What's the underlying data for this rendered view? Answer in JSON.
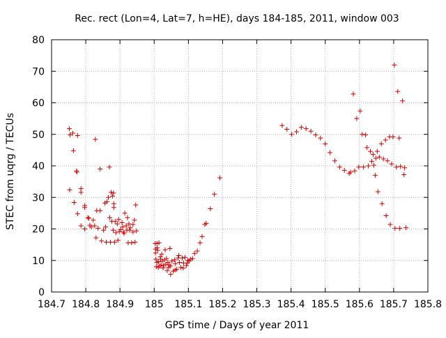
{
  "chart_data": {
    "type": "scatter",
    "title": "Rec. rect (Lon=4, Lat=7, h=HE), days 184-185, 2011, window 003",
    "xlabel": "GPS time / Days of year 2011",
    "ylabel": "STEC from uqrg / TECUs",
    "xlim": [
      184.7,
      185.8
    ],
    "ylim": [
      0,
      80
    ],
    "x_ticks": [
      "184.7",
      "184.8",
      "184.9",
      "185",
      "185.1",
      "185.2",
      "185.3",
      "185.4",
      "185.5",
      "185.6",
      "185.7",
      "185.8"
    ],
    "y_ticks": [
      "0",
      "10",
      "20",
      "30",
      "40",
      "50",
      "60",
      "70",
      "80"
    ],
    "grid": true,
    "marker": "+",
    "color": "#cc0000",
    "series": [
      {
        "points": [
          [
            184.752,
            51.8
          ],
          [
            184.754,
            49.8
          ],
          [
            184.753,
            32.4
          ],
          [
            184.762,
            50.4
          ],
          [
            184.764,
            44.8
          ],
          [
            184.766,
            28.4
          ],
          [
            184.773,
            38.4
          ],
          [
            184.774,
            38.0
          ],
          [
            184.776,
            49.6
          ],
          [
            184.776,
            24.8
          ],
          [
            184.786,
            32.8
          ],
          [
            184.786,
            31.6
          ],
          [
            184.786,
            21.0
          ],
          [
            184.797,
            27.4
          ],
          [
            184.797,
            26.8
          ],
          [
            184.797,
            20.0
          ],
          [
            184.806,
            23.6
          ],
          [
            184.809,
            23.4
          ],
          [
            184.812,
            21.2
          ],
          [
            184.816,
            20.6
          ],
          [
            184.822,
            22.8
          ],
          [
            184.826,
            21.0
          ],
          [
            184.828,
            48.4
          ],
          [
            184.83,
            17.2
          ],
          [
            184.832,
            25.8
          ],
          [
            184.836,
            20.2
          ],
          [
            184.842,
            25.8
          ],
          [
            184.842,
            39.0
          ],
          [
            184.846,
            16.2
          ],
          [
            184.852,
            19.6
          ],
          [
            184.856,
            28.2
          ],
          [
            184.858,
            20.6
          ],
          [
            184.86,
            15.8
          ],
          [
            184.862,
            28.6
          ],
          [
            184.866,
            30.0
          ],
          [
            184.869,
            39.6
          ],
          [
            184.87,
            23.6
          ],
          [
            184.872,
            15.8
          ],
          [
            184.874,
            31.6
          ],
          [
            184.876,
            22.4
          ],
          [
            184.878,
            30.4
          ],
          [
            184.88,
            19.6
          ],
          [
            184.881,
            31.4
          ],
          [
            184.882,
            28.0
          ],
          [
            184.882,
            26.8
          ],
          [
            184.884,
            15.8
          ],
          [
            184.886,
            22.4
          ],
          [
            184.888,
            18.8
          ],
          [
            184.892,
            21.6
          ],
          [
            184.894,
            16.4
          ],
          [
            184.896,
            23.0
          ],
          [
            184.898,
            19.2
          ],
          [
            184.902,
            19.8
          ],
          [
            184.906,
            22.0
          ],
          [
            184.908,
            20.6
          ],
          [
            184.91,
            19.0
          ],
          [
            184.912,
            18.6
          ],
          [
            184.914,
            25.0
          ],
          [
            184.918,
            21.0
          ],
          [
            184.92,
            19.6
          ],
          [
            184.922,
            23.6
          ],
          [
            184.924,
            15.6
          ],
          [
            184.926,
            21.6
          ],
          [
            184.928,
            19.6
          ],
          [
            184.93,
            20.4
          ],
          [
            184.934,
            15.6
          ],
          [
            184.938,
            21.4
          ],
          [
            184.938,
            19.0
          ],
          [
            184.942,
            22.8
          ],
          [
            184.944,
            15.8
          ],
          [
            184.946,
            27.6
          ],
          [
            184.948,
            19.4
          ],
          [
            185.003,
            15.4
          ],
          [
            185.004,
            13.6
          ],
          [
            185.004,
            12.4
          ],
          [
            185.005,
            10.4
          ],
          [
            185.006,
            8.0
          ],
          [
            185.008,
            15.4
          ],
          [
            185.009,
            14.0
          ],
          [
            185.01,
            13.2
          ],
          [
            185.012,
            7.8
          ],
          [
            185.013,
            9.6
          ],
          [
            185.014,
            15.6
          ],
          [
            185.016,
            8.2
          ],
          [
            185.018,
            11.2
          ],
          [
            185.019,
            10.4
          ],
          [
            185.02,
            8.6
          ],
          [
            185.022,
            12.0
          ],
          [
            185.024,
            9.8
          ],
          [
            185.026,
            7.6
          ],
          [
            185.028,
            8.4
          ],
          [
            185.03,
            10.2
          ],
          [
            185.032,
            13.4
          ],
          [
            185.034,
            8.8
          ],
          [
            185.036,
            10.6
          ],
          [
            185.038,
            6.8
          ],
          [
            185.04,
            9.4
          ],
          [
            185.042,
            7.8
          ],
          [
            185.044,
            8.6
          ],
          [
            185.046,
            13.8
          ],
          [
            185.048,
            5.6
          ],
          [
            185.052,
            9.8
          ],
          [
            185.056,
            6.6
          ],
          [
            185.06,
            10.2
          ],
          [
            185.062,
            9.0
          ],
          [
            185.066,
            7.2
          ],
          [
            185.07,
            10.8
          ],
          [
            185.072,
            11.6
          ],
          [
            185.074,
            9.4
          ],
          [
            185.078,
            7.8
          ],
          [
            185.082,
            10.8
          ],
          [
            185.086,
            9.2
          ],
          [
            185.09,
            11.0
          ],
          [
            185.094,
            8.4
          ],
          [
            185.098,
            10.0
          ],
          [
            185.102,
            9.8
          ],
          [
            185.106,
            10.4
          ],
          [
            185.112,
            10.6
          ],
          [
            185.118,
            12.2
          ],
          [
            185.126,
            13.0
          ],
          [
            185.134,
            15.6
          ],
          [
            185.14,
            17.6
          ],
          [
            185.148,
            21.4
          ],
          [
            185.152,
            21.8
          ],
          [
            185.164,
            26.4
          ],
          [
            185.176,
            31.0
          ],
          [
            185.192,
            36.2
          ],
          [
            185.008,
            9.4
          ],
          [
            185.048,
            8.2
          ],
          [
            185.061,
            7.0
          ],
          [
            185.085,
            7.6
          ],
          [
            185.097,
            9.2
          ],
          [
            185.374,
            52.8
          ],
          [
            185.388,
            51.6
          ],
          [
            185.402,
            50.0
          ],
          [
            185.416,
            50.8
          ],
          [
            185.43,
            52.2
          ],
          [
            185.444,
            51.8
          ],
          [
            185.458,
            51.0
          ],
          [
            185.472,
            49.8
          ],
          [
            185.486,
            48.8
          ],
          [
            185.5,
            47.0
          ],
          [
            185.514,
            44.2
          ],
          [
            185.528,
            41.6
          ],
          [
            185.542,
            39.6
          ],
          [
            185.556,
            38.6
          ],
          [
            185.57,
            37.6
          ],
          [
            185.574,
            38.0
          ],
          [
            185.582,
            62.8
          ],
          [
            185.586,
            38.4
          ],
          [
            185.592,
            55.0
          ],
          [
            185.598,
            39.6
          ],
          [
            185.602,
            57.4
          ],
          [
            185.608,
            50.0
          ],
          [
            185.612,
            39.6
          ],
          [
            185.618,
            49.8
          ],
          [
            185.622,
            45.8
          ],
          [
            185.626,
            40.0
          ],
          [
            185.632,
            44.6
          ],
          [
            185.636,
            41.4
          ],
          [
            185.64,
            43.6
          ],
          [
            185.642,
            40.2
          ],
          [
            185.646,
            37.0
          ],
          [
            185.648,
            42.4
          ],
          [
            185.652,
            44.6
          ],
          [
            185.654,
            31.8
          ],
          [
            185.658,
            42.8
          ],
          [
            185.664,
            47.0
          ],
          [
            185.666,
            28.0
          ],
          [
            185.67,
            42.2
          ],
          [
            185.676,
            48.2
          ],
          [
            185.678,
            24.2
          ],
          [
            185.682,
            41.6
          ],
          [
            185.688,
            49.2
          ],
          [
            185.69,
            21.4
          ],
          [
            185.694,
            40.6
          ],
          [
            185.698,
            49.2
          ],
          [
            185.702,
            72.0
          ],
          [
            185.704,
            20.2
          ],
          [
            185.708,
            39.6
          ],
          [
            185.712,
            63.6
          ],
          [
            185.716,
            48.8
          ],
          [
            185.718,
            20.2
          ],
          [
            185.72,
            39.8
          ],
          [
            185.726,
            60.6
          ],
          [
            185.73,
            37.2
          ],
          [
            185.732,
            39.4
          ],
          [
            185.736,
            20.4
          ]
        ]
      }
    ]
  }
}
